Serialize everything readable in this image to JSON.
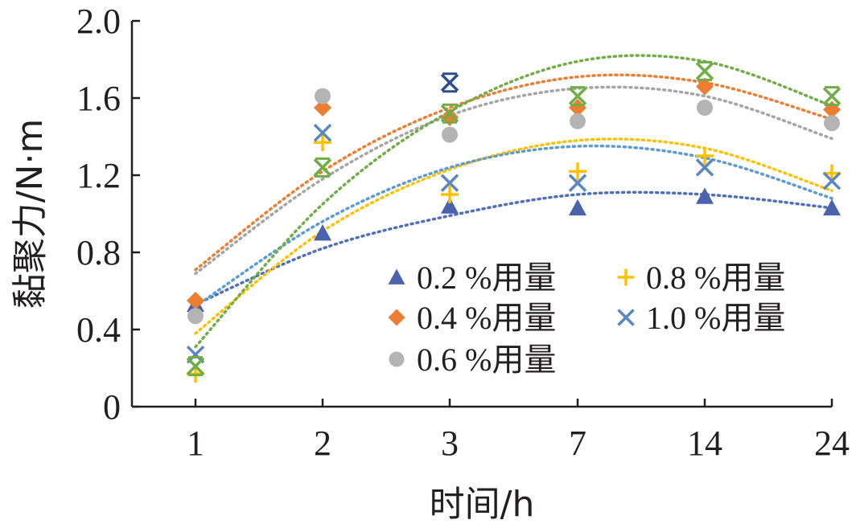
{
  "chart_data": {
    "type": "scatter",
    "xlabel": "时间/h",
    "ylabel": "黏聚力/N·m",
    "categories": [
      "1",
      "2",
      "3",
      "7",
      "14",
      "24"
    ],
    "yticks": [
      "0",
      "0.4",
      "0.8",
      "1.2",
      "1.6",
      "2.0"
    ],
    "ylim": [
      0,
      2.0
    ],
    "grid": false,
    "legend_position": "bottom-right",
    "trendline": "polynomial (dotted)",
    "series": [
      {
        "name": "0.2 %用量",
        "marker": "triangle",
        "color": "#4b63ac",
        "trend_color": "#4e6fbd",
        "values": [
          0.53,
          0.9,
          1.04,
          1.03,
          1.09,
          1.03
        ],
        "trend": [
          0.53,
          0.82,
          0.99,
          1.1,
          1.1,
          1.03
        ]
      },
      {
        "name": "0.4 %用量",
        "marker": "diamond",
        "color": "#ed7d31",
        "trend_color": "#ed7d31",
        "values": [
          0.55,
          1.55,
          1.5,
          1.55,
          1.66,
          1.54
        ],
        "trend": [
          0.71,
          1.22,
          1.55,
          1.71,
          1.68,
          1.49
        ]
      },
      {
        "name": "0.6 %用量",
        "marker": "circle",
        "color": "#b4b4b4",
        "trend_color": "#a5a5a5",
        "values": [
          0.47,
          1.61,
          1.41,
          1.48,
          1.55,
          1.47
        ],
        "trend": [
          0.69,
          1.18,
          1.51,
          1.65,
          1.61,
          1.39
        ]
      },
      {
        "name": "0.8 %用量",
        "marker": "plus",
        "color": "#ffc000",
        "trend_color": "#ffc000",
        "values": [
          0.17,
          1.37,
          1.1,
          1.22,
          1.3,
          1.21
        ],
        "trend": [
          0.38,
          0.91,
          1.23,
          1.38,
          1.34,
          1.12
        ]
      },
      {
        "name": "1.0 %用量",
        "marker": "x",
        "color": "#5b87c0",
        "trend_color": "#5b9bd5",
        "values": [
          0.27,
          1.42,
          1.16,
          1.16,
          1.24,
          1.17
        ],
        "trend": [
          0.52,
          0.96,
          1.24,
          1.35,
          1.29,
          1.08
        ]
      },
      {
        "name": "",
        "marker": "x-green",
        "color": "#70ad47",
        "trend_color": "#70ad47",
        "values": [
          0.21,
          1.24,
          1.52,
          1.61,
          1.74,
          1.61
        ],
        "trend": [
          0.31,
          1.05,
          1.53,
          1.79,
          1.79,
          1.56
        ]
      },
      {
        "name": "",
        "marker": "x-navy",
        "color": "#2f4b8f",
        "trend_color": "#2f4b8f",
        "values": [
          null,
          null,
          1.68,
          null,
          null,
          null
        ],
        "trend": null
      }
    ],
    "legend_layout": [
      [
        0,
        3
      ],
      [
        1,
        4
      ],
      [
        2
      ]
    ]
  }
}
